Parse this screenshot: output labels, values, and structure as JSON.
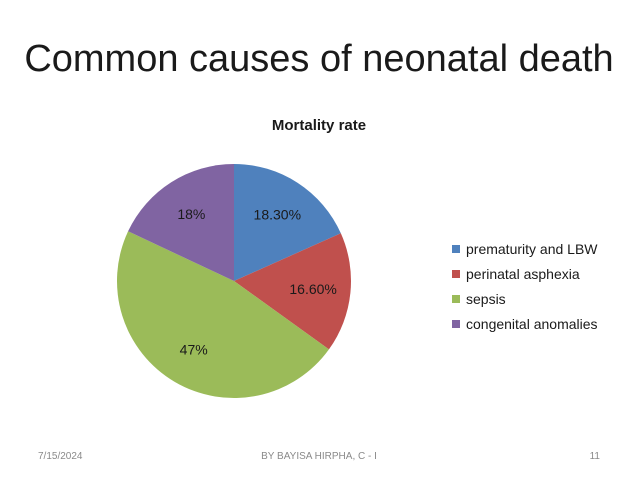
{
  "slide": {
    "title": "Common causes of neonatal death",
    "footer_date": "7/15/2024",
    "footer_author": "BY BAYISA HIRPHA, C - I",
    "footer_page": "11"
  },
  "chart_data": {
    "type": "pie",
    "title": "Mortality rate",
    "labels": [
      "prematurity and LBW",
      "perinatal asphexia",
      "sepsis",
      "congenital anomalies"
    ],
    "values": [
      18.3,
      16.6,
      47,
      18
    ],
    "data_labels": [
      "18.30%",
      "16.60%",
      "47%",
      "18%"
    ],
    "colors": [
      "#4f81bd",
      "#c0504d",
      "#9bbb59",
      "#8064a2"
    ],
    "legend_position": "right",
    "start_angle": "12 o'clock, clockwise"
  }
}
